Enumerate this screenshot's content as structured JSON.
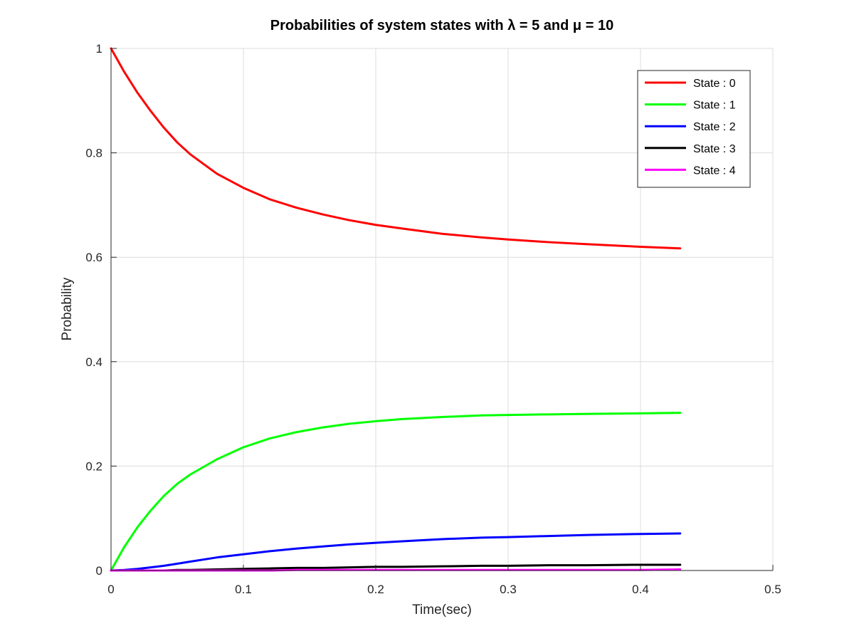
{
  "chart_data": {
    "type": "line",
    "title": "Probabilities of system states with λ = 5 and μ = 10",
    "xlabel": "Time(sec)",
    "ylabel": "Probability",
    "xlim": [
      0,
      0.5
    ],
    "ylim": [
      0,
      1
    ],
    "xticks": [
      0,
      0.1,
      0.2,
      0.3,
      0.4,
      0.5
    ],
    "xtick_labels": [
      "0",
      "0.1",
      "0.2",
      "0.3",
      "0.4",
      "0.5"
    ],
    "yticks": [
      0,
      0.2,
      0.4,
      0.6,
      0.8,
      1
    ],
    "ytick_labels": [
      "0",
      "0.2",
      "0.4",
      "0.6",
      "0.8",
      "1"
    ],
    "grid": true,
    "legend_position": "top-right",
    "x": [
      0,
      0.01,
      0.02,
      0.03,
      0.04,
      0.05,
      0.06,
      0.08,
      0.1,
      0.12,
      0.14,
      0.16,
      0.18,
      0.2,
      0.22,
      0.25,
      0.28,
      0.3,
      0.33,
      0.36,
      0.4,
      0.43
    ],
    "series": [
      {
        "name": "State : 0",
        "color": "#ff0000",
        "values": [
          1.0,
          0.955,
          0.915,
          0.88,
          0.848,
          0.82,
          0.797,
          0.76,
          0.733,
          0.711,
          0.695,
          0.682,
          0.671,
          0.662,
          0.655,
          0.645,
          0.638,
          0.634,
          0.629,
          0.625,
          0.62,
          0.617
        ]
      },
      {
        "name": "State : 1",
        "color": "#00ff00",
        "values": [
          0.0,
          0.045,
          0.083,
          0.115,
          0.143,
          0.166,
          0.184,
          0.213,
          0.236,
          0.253,
          0.265,
          0.274,
          0.281,
          0.286,
          0.29,
          0.294,
          0.297,
          0.298,
          0.299,
          0.3,
          0.301,
          0.302
        ]
      },
      {
        "name": "State : 2",
        "color": "#0000ff",
        "values": [
          0.0,
          0.001,
          0.003,
          0.006,
          0.009,
          0.013,
          0.017,
          0.025,
          0.031,
          0.037,
          0.042,
          0.046,
          0.05,
          0.053,
          0.056,
          0.06,
          0.063,
          0.064,
          0.066,
          0.068,
          0.07,
          0.071
        ]
      },
      {
        "name": "State : 3",
        "color": "#000000",
        "values": [
          0.0,
          0.0,
          0.0,
          0.0,
          0.0,
          0.001,
          0.001,
          0.002,
          0.003,
          0.004,
          0.005,
          0.005,
          0.006,
          0.007,
          0.007,
          0.008,
          0.009,
          0.009,
          0.01,
          0.01,
          0.011,
          0.011
        ]
      },
      {
        "name": "State : 4",
        "color": "#ff00ff",
        "values": [
          0.0,
          0.0,
          0.0,
          0.0,
          0.0,
          0.0,
          0.0,
          0.0,
          0.0,
          0.0,
          0.001,
          0.001,
          0.001,
          0.001,
          0.001,
          0.001,
          0.001,
          0.001,
          0.001,
          0.001,
          0.001,
          0.002
        ]
      }
    ]
  }
}
